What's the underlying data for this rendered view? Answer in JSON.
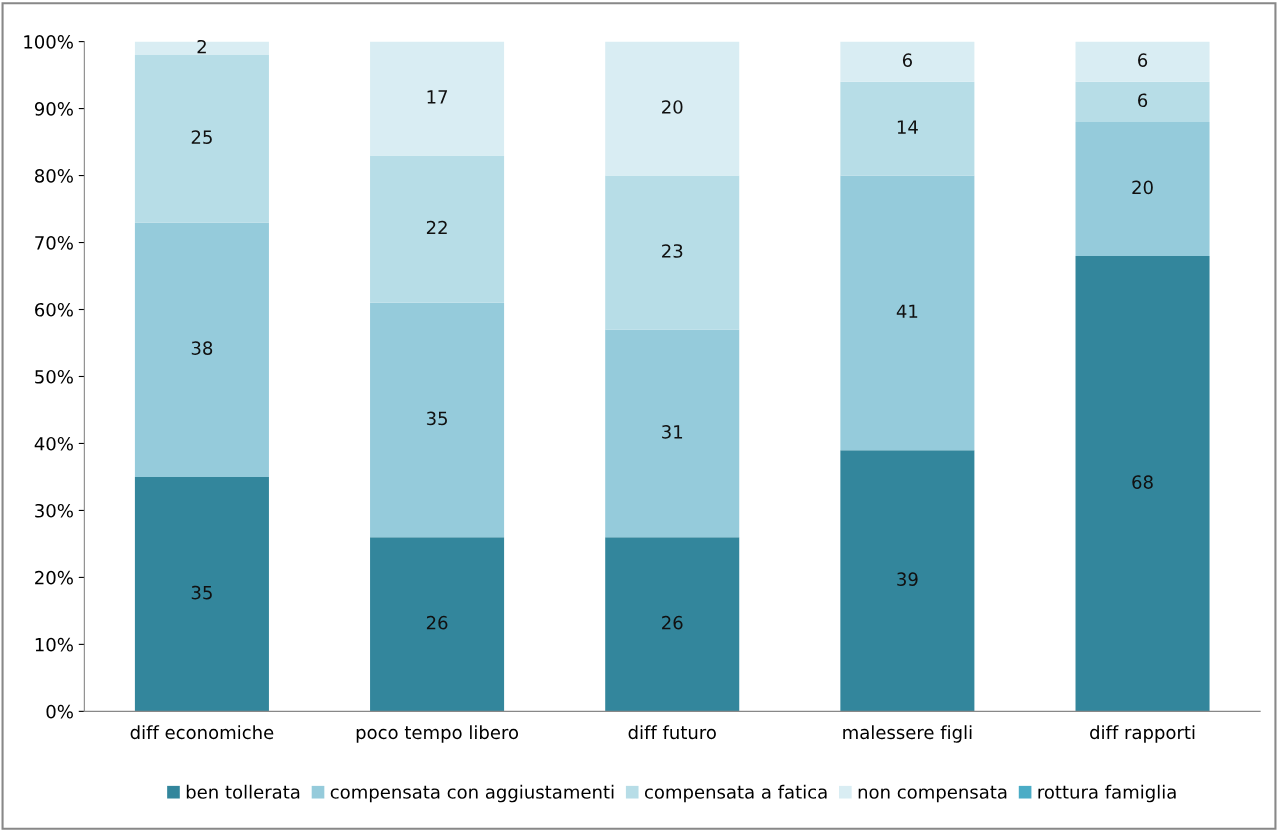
{
  "chart_data": {
    "type": "bar",
    "stacked": true,
    "categories": [
      "diff economiche",
      "poco tempo libero",
      "diff futuro",
      "malessere figli",
      "diff rapporti"
    ],
    "series": [
      {
        "name": "ben tollerata",
        "color": "#33869c",
        "values": [
          35,
          26,
          26,
          39,
          68
        ],
        "value_labels": [
          "35",
          "26",
          "26",
          "39",
          "68"
        ]
      },
      {
        "name": "compensata con aggiustamenti",
        "color": "#95cbdb",
        "values": [
          38,
          35,
          31,
          41,
          20
        ],
        "value_labels": [
          "38",
          "35",
          "31",
          "41",
          "20"
        ]
      },
      {
        "name": "compensata a fatica",
        "color": "#b7dde7",
        "values": [
          25,
          22,
          23,
          14,
          6
        ],
        "value_labels": [
          "25",
          "22",
          "23",
          "14",
          "6"
        ]
      },
      {
        "name": "non compensata",
        "color": "#d9edf3",
        "values": [
          2,
          17,
          20,
          6,
          6
        ],
        "value_labels": [
          "2",
          "17",
          "20",
          "6",
          "6"
        ]
      },
      {
        "name": "rottura famiglia",
        "color": "#4bacc6",
        "values": [
          0,
          0,
          0,
          0,
          0
        ]
      }
    ],
    "ylim": [
      0,
      100
    ],
    "yticks": [
      {
        "value": 0,
        "label": "0%"
      },
      {
        "value": 10,
        "label": "10%"
      },
      {
        "value": 20,
        "label": "20%"
      },
      {
        "value": 30,
        "label": "30%"
      },
      {
        "value": 40,
        "label": "40%"
      },
      {
        "value": 50,
        "label": "50%"
      },
      {
        "value": 60,
        "label": "60%"
      },
      {
        "value": 70,
        "label": "70%"
      },
      {
        "value": 80,
        "label": "80%"
      },
      {
        "value": 90,
        "label": "90%"
      },
      {
        "value": 100,
        "label": "100%"
      }
    ],
    "grid": false,
    "legend": "bottom"
  }
}
